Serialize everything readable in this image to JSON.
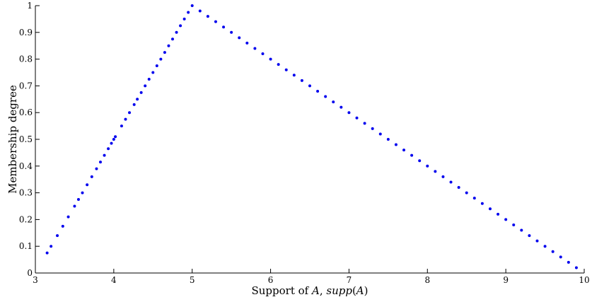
{
  "chart_data": {
    "type": "scatter",
    "title": "",
    "xlabel_parts": {
      "prefix": "Support of ",
      "set": "A",
      "sep": ", ",
      "func": "supp",
      "open": "(",
      "arg": "A",
      "close": ")"
    },
    "ylabel": "Membership degree",
    "xlim": [
      3,
      10
    ],
    "ylim": [
      0,
      1
    ],
    "xticks": [
      3,
      4,
      5,
      6,
      7,
      8,
      9,
      10
    ],
    "yticks": [
      0,
      0.1,
      0.2,
      0.3,
      0.4,
      0.5,
      0.6,
      0.7,
      0.8,
      0.9,
      1
    ],
    "ytick_labels": [
      "0",
      "0.1",
      "0.2",
      "0.3",
      "0.4",
      "0.5",
      "0.6",
      "0.7",
      "0.8",
      "0.9",
      "1"
    ],
    "grid": false,
    "marker_color": "#0000ee",
    "series": [
      {
        "x": [
          3.15,
          3.2,
          3.28,
          3.35,
          3.42,
          3.5,
          3.55,
          3.6,
          3.66,
          3.72,
          3.78,
          3.83,
          3.88,
          3.93,
          3.97,
          4.0,
          4.02,
          4.1,
          4.15,
          4.2,
          4.26,
          4.3,
          4.35,
          4.4,
          4.45,
          4.5,
          4.55,
          4.6,
          4.65,
          4.7,
          4.75,
          4.8,
          4.85,
          4.9,
          4.95,
          5.0,
          5.1,
          5.2,
          5.3,
          5.4,
          5.5,
          5.6,
          5.7,
          5.8,
          5.9,
          6.0,
          6.1,
          6.2,
          6.3,
          6.4,
          6.5,
          6.6,
          6.7,
          6.8,
          6.9,
          7.0,
          7.1,
          7.2,
          7.3,
          7.4,
          7.5,
          7.6,
          7.7,
          7.8,
          7.9,
          8.0,
          8.1,
          8.2,
          8.3,
          8.4,
          8.5,
          8.6,
          8.7,
          8.8,
          8.9,
          9.0,
          9.1,
          9.2,
          9.3,
          9.4,
          9.5,
          9.6,
          9.7,
          9.8,
          9.9
        ],
        "y": [
          0.075,
          0.1,
          0.14,
          0.175,
          0.21,
          0.25,
          0.275,
          0.3,
          0.33,
          0.36,
          0.39,
          0.415,
          0.44,
          0.465,
          0.485,
          0.5,
          0.51,
          0.55,
          0.575,
          0.6,
          0.63,
          0.65,
          0.675,
          0.7,
          0.725,
          0.75,
          0.775,
          0.8,
          0.825,
          0.85,
          0.875,
          0.9,
          0.925,
          0.95,
          0.975,
          1.0,
          0.98,
          0.96,
          0.94,
          0.92,
          0.9,
          0.88,
          0.86,
          0.84,
          0.82,
          0.8,
          0.78,
          0.76,
          0.74,
          0.72,
          0.7,
          0.68,
          0.66,
          0.64,
          0.62,
          0.6,
          0.58,
          0.56,
          0.54,
          0.52,
          0.5,
          0.48,
          0.46,
          0.44,
          0.42,
          0.4,
          0.38,
          0.36,
          0.34,
          0.32,
          0.3,
          0.28,
          0.26,
          0.24,
          0.22,
          0.2,
          0.18,
          0.16,
          0.14,
          0.12,
          0.1,
          0.08,
          0.06,
          0.04,
          0.02
        ]
      }
    ]
  }
}
